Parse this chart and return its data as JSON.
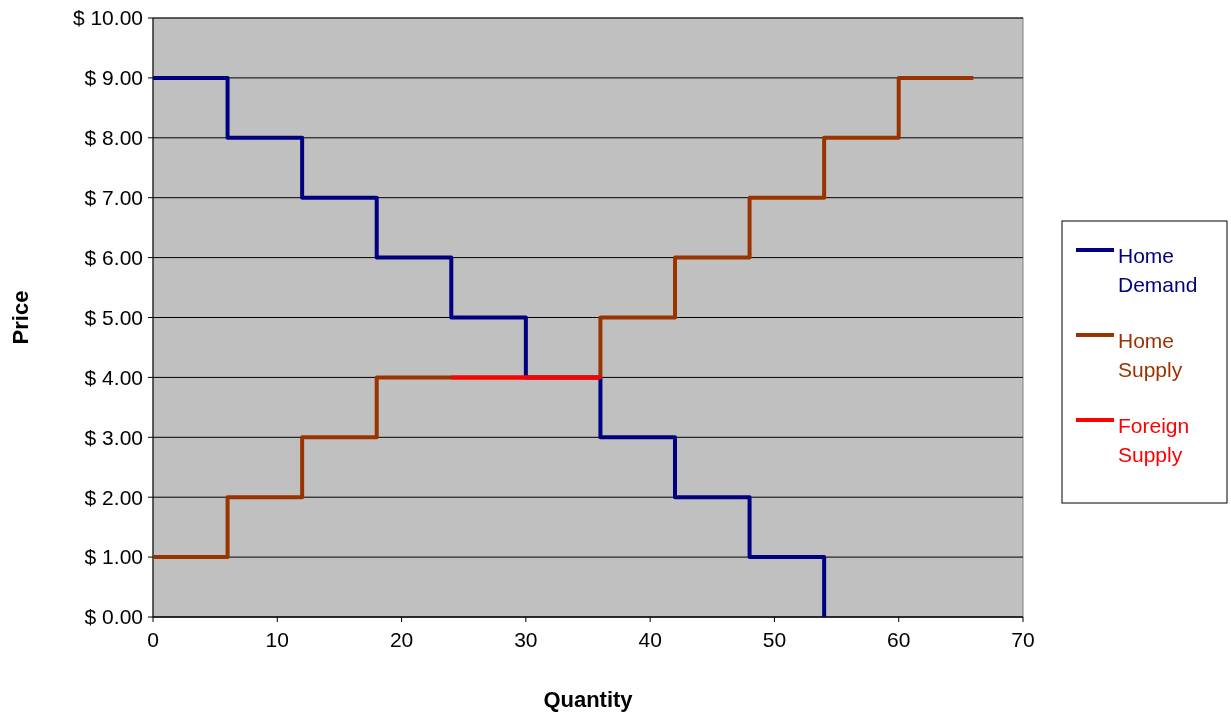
{
  "chart_data": {
    "type": "step",
    "xlabel": "Quantity",
    "ylabel": "Price",
    "xlim": [
      0,
      70
    ],
    "ylim": [
      0,
      10
    ],
    "xticks": [
      0,
      10,
      20,
      30,
      40,
      50,
      60,
      70
    ],
    "yticks": [
      {
        "value": 0,
        "label": "$ 0.00"
      },
      {
        "value": 1,
        "label": "$ 1.00"
      },
      {
        "value": 2,
        "label": "$ 2.00"
      },
      {
        "value": 3,
        "label": "$ 3.00"
      },
      {
        "value": 4,
        "label": "$ 4.00"
      },
      {
        "value": 5,
        "label": "$ 5.00"
      },
      {
        "value": 6,
        "label": "$ 6.00"
      },
      {
        "value": 7,
        "label": "$ 7.00"
      },
      {
        "value": 8,
        "label": "$ 8.00"
      },
      {
        "value": 9,
        "label": "$ 9.00"
      },
      {
        "value": 10,
        "label": "$ 10.00"
      }
    ],
    "grid": "y",
    "legend": "right",
    "series": [
      {
        "name": "Home Demand",
        "color": "#000080",
        "x": [
          0,
          6,
          12,
          18,
          24,
          30,
          36,
          42,
          48,
          54
        ],
        "values": [
          9,
          8,
          7,
          6,
          5,
          4,
          3,
          2,
          1,
          0
        ]
      },
      {
        "name": "Home Supply",
        "color": "#993300",
        "x": [
          0,
          6,
          12,
          18,
          24,
          30,
          36,
          42,
          48,
          54,
          60,
          66
        ],
        "values": [
          1,
          2,
          3,
          4,
          4,
          4,
          5,
          6,
          7,
          8,
          9,
          9
        ]
      },
      {
        "name": "Foreign Supply",
        "color": "#ff0000",
        "x": [
          24,
          36
        ],
        "values": [
          4,
          4
        ]
      }
    ]
  }
}
